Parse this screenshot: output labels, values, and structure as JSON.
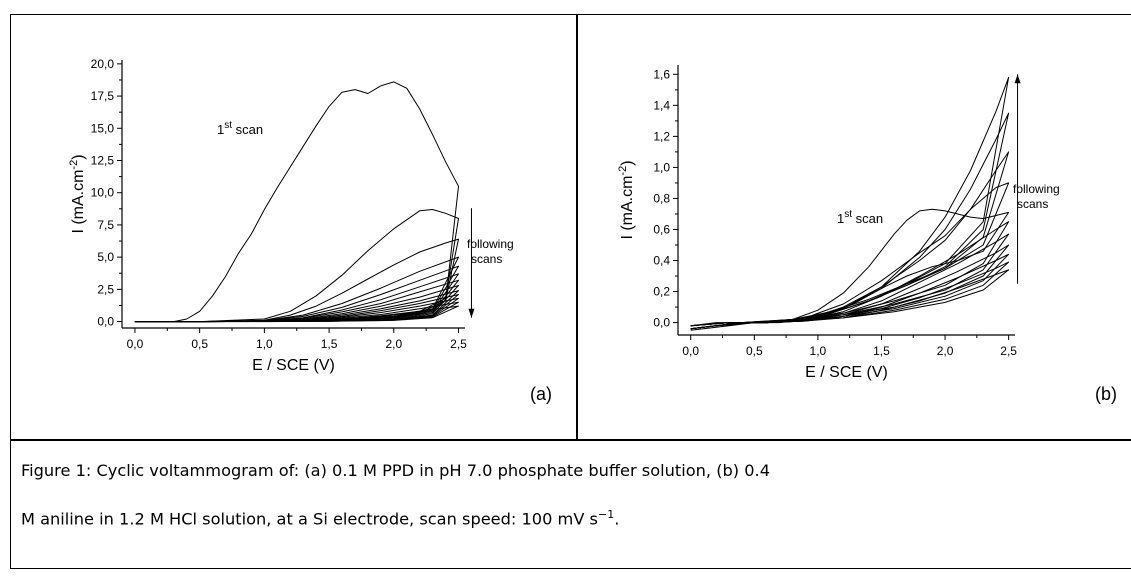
{
  "chart_data": [
    {
      "type": "line",
      "panel_label": "(a)",
      "xlabel": "E / SCE (V)",
      "ylabel": "I (mA.cm-2)",
      "xlim": [
        -0.1,
        2.55
      ],
      "ylim": [
        -0.5,
        20.3
      ],
      "x_ticks": [
        "0,0",
        "0,5",
        "1,0",
        "1,5",
        "2,0",
        "2,5"
      ],
      "y_ticks": [
        "0,0",
        "2,5",
        "5,0",
        "7,5",
        "10,0",
        "12,5",
        "15,0",
        "17,5",
        "20,0"
      ],
      "annotations": {
        "first_scan": {
          "base": "1",
          "sup": "st",
          "rest": " scan"
        },
        "following": [
          "following",
          "scans"
        ]
      },
      "arrow": {
        "x": 2.6,
        "from": 8.8,
        "to": 0.3,
        "direction": "down"
      },
      "series": [
        {
          "x": [
            0.0,
            0.1,
            0.2,
            0.3,
            0.4,
            0.5,
            0.6,
            0.7,
            0.8,
            0.9,
            1.0,
            1.1,
            1.2,
            1.3,
            1.4,
            1.5,
            1.6,
            1.7,
            1.8,
            1.9,
            2.0,
            2.1,
            2.2,
            2.3,
            2.4,
            2.5,
            2.4,
            2.3,
            2.2,
            2.0,
            1.8,
            1.5,
            1.0,
            0.5,
            0.0
          ],
          "y": [
            0.0,
            0.0,
            0.0,
            0.0,
            0.2,
            0.8,
            2.0,
            3.5,
            5.3,
            6.8,
            8.7,
            10.4,
            12.0,
            13.6,
            15.2,
            16.7,
            17.8,
            18.0,
            17.7,
            18.3,
            18.6,
            18.1,
            16.5,
            14.5,
            12.4,
            10.5,
            1.6,
            0.9,
            0.6,
            0.35,
            0.2,
            0.1,
            0.05,
            0.0,
            0.0
          ]
        },
        {
          "x": [
            0.0,
            0.5,
            1.0,
            1.2,
            1.4,
            1.6,
            1.8,
            2.0,
            2.2,
            2.3,
            2.4,
            2.5,
            2.4,
            2.2,
            2.0,
            1.8,
            1.5,
            1.0,
            0.5,
            0.0
          ],
          "y": [
            0.0,
            0.0,
            0.2,
            0.8,
            2.0,
            3.6,
            5.5,
            7.2,
            8.6,
            8.7,
            8.4,
            8.0,
            1.8,
            0.8,
            0.5,
            0.3,
            0.15,
            0.05,
            0.0,
            0.0
          ]
        },
        {
          "x": [
            0.0,
            0.5,
            1.0,
            1.2,
            1.4,
            1.6,
            1.8,
            2.0,
            2.2,
            2.4,
            2.5,
            2.4,
            2.2,
            2.0,
            1.5,
            1.0,
            0.5,
            0.0
          ],
          "y": [
            0.0,
            0.0,
            0.1,
            0.5,
            1.2,
            2.2,
            3.3,
            4.4,
            5.4,
            6.1,
            6.4,
            1.6,
            0.7,
            0.4,
            0.15,
            0.05,
            0.0,
            0.0
          ]
        },
        {
          "x": [
            0.0,
            0.5,
            1.0,
            1.3,
            1.6,
            1.9,
            2.2,
            2.5,
            2.3,
            2.0,
            1.5,
            1.0,
            0.5,
            0.0
          ],
          "y": [
            0.0,
            0.0,
            0.08,
            0.5,
            1.4,
            2.6,
            3.9,
            5.0,
            1.0,
            0.4,
            0.12,
            0.04,
            0.0,
            0.0
          ]
        },
        {
          "x": [
            0.0,
            0.5,
            1.0,
            1.3,
            1.6,
            1.9,
            2.2,
            2.5,
            2.3,
            2.0,
            1.5,
            1.0,
            0.5,
            0.0
          ],
          "y": [
            0.0,
            0.0,
            0.06,
            0.4,
            1.1,
            2.1,
            3.2,
            4.3,
            0.9,
            0.35,
            0.1,
            0.03,
            0.0,
            0.0
          ]
        },
        {
          "x": [
            0.0,
            0.5,
            1.0,
            1.3,
            1.6,
            1.9,
            2.2,
            2.5,
            2.3,
            2.0,
            1.5,
            1.0,
            0.5,
            0.0
          ],
          "y": [
            0.0,
            0.0,
            0.05,
            0.3,
            0.9,
            1.7,
            2.7,
            3.7,
            0.8,
            0.3,
            0.08,
            0.02,
            0.0,
            0.0
          ]
        },
        {
          "x": [
            0.0,
            0.5,
            1.0,
            1.3,
            1.6,
            1.9,
            2.2,
            2.5,
            2.3,
            2.0,
            1.5,
            1.0,
            0.5,
            0.0
          ],
          "y": [
            0.0,
            0.0,
            0.04,
            0.25,
            0.75,
            1.4,
            2.3,
            3.2,
            0.7,
            0.25,
            0.07,
            0.02,
            0.0,
            0.0
          ]
        },
        {
          "x": [
            0.0,
            0.5,
            1.0,
            1.3,
            1.6,
            1.9,
            2.2,
            2.5,
            2.3,
            2.0,
            1.5,
            1.0,
            0.5,
            0.0
          ],
          "y": [
            0.0,
            0.0,
            0.03,
            0.2,
            0.6,
            1.2,
            1.9,
            2.8,
            0.6,
            0.2,
            0.06,
            0.02,
            0.0,
            0.0
          ]
        },
        {
          "x": [
            0.0,
            0.5,
            1.0,
            1.3,
            1.6,
            1.9,
            2.2,
            2.5,
            2.3,
            2.0,
            1.5,
            1.0,
            0.5,
            0.0
          ],
          "y": [
            0.0,
            0.0,
            0.03,
            0.16,
            0.5,
            1.0,
            1.6,
            2.4,
            0.5,
            0.18,
            0.05,
            0.01,
            0.0,
            0.0
          ]
        },
        {
          "x": [
            0.0,
            0.5,
            1.0,
            1.3,
            1.6,
            1.9,
            2.2,
            2.5,
            2.3,
            2.0,
            1.5,
            1.0,
            0.5,
            0.0
          ],
          "y": [
            0.0,
            0.0,
            0.02,
            0.13,
            0.4,
            0.85,
            1.4,
            2.1,
            0.45,
            0.15,
            0.04,
            0.01,
            0.0,
            0.0
          ]
        },
        {
          "x": [
            0.0,
            0.5,
            1.0,
            1.3,
            1.6,
            1.9,
            2.2,
            2.5,
            2.3,
            2.0,
            1.5,
            1.0,
            0.5,
            0.0
          ],
          "y": [
            0.0,
            0.0,
            0.02,
            0.1,
            0.33,
            0.7,
            1.2,
            1.8,
            0.4,
            0.13,
            0.03,
            0.01,
            0.0,
            0.0
          ]
        },
        {
          "x": [
            0.0,
            0.5,
            1.0,
            1.3,
            1.6,
            1.9,
            2.2,
            2.5,
            2.3,
            2.0,
            1.5,
            1.0,
            0.5,
            0.0
          ],
          "y": [
            0.0,
            0.0,
            0.01,
            0.08,
            0.27,
            0.55,
            1.0,
            1.5,
            0.35,
            0.11,
            0.03,
            0.01,
            0.0,
            0.0
          ]
        },
        {
          "x": [
            0.0,
            0.5,
            1.0,
            1.3,
            1.6,
            1.9,
            2.2,
            2.5,
            2.3,
            2.0,
            1.5,
            1.0,
            0.5,
            0.0
          ],
          "y": [
            0.0,
            0.0,
            0.01,
            0.06,
            0.2,
            0.45,
            0.8,
            1.2,
            0.3,
            0.09,
            0.02,
            0.0,
            0.0,
            0.0
          ]
        }
      ]
    },
    {
      "type": "line",
      "panel_label": "(b)",
      "xlabel": "E / SCE (V)",
      "ylabel": "I (mA.cm-2)",
      "xlim": [
        -0.1,
        2.55
      ],
      "ylim": [
        -0.08,
        1.66
      ],
      "x_ticks": [
        "0,0",
        "0,5",
        "1,0",
        "1,5",
        "2,0",
        "2,5"
      ],
      "y_ticks": [
        "0,0",
        "0,2",
        "0,4",
        "0,6",
        "0,8",
        "1,0",
        "1,2",
        "1,4",
        "1,6"
      ],
      "annotations": {
        "first_scan": {
          "base": "1",
          "sup": "st",
          "rest": " scan"
        },
        "following": [
          "following",
          "scans"
        ]
      },
      "arrow": {
        "x": 2.57,
        "from": 0.25,
        "to": 1.6,
        "direction": "up"
      },
      "series": [
        {
          "x": [
            0.0,
            0.2,
            0.4,
            0.6,
            0.8,
            1.0,
            1.2,
            1.4,
            1.6,
            1.7,
            1.8,
            1.9,
            2.0,
            2.1,
            2.2,
            2.3,
            2.4,
            2.5,
            2.3,
            2.1,
            1.9,
            1.7,
            1.5,
            1.3,
            1.1,
            0.9,
            0.7,
            0.5,
            0.3,
            0.1,
            0.0
          ],
          "y": [
            -0.02,
            0.0,
            0.0,
            0.0,
            0.02,
            0.08,
            0.19,
            0.36,
            0.57,
            0.66,
            0.72,
            0.73,
            0.72,
            0.7,
            0.68,
            0.67,
            0.69,
            0.71,
            0.46,
            0.4,
            0.36,
            0.3,
            0.22,
            0.13,
            0.06,
            0.02,
            0.0,
            0.0,
            -0.02,
            -0.04,
            -0.05
          ]
        },
        {
          "x": [
            0.0,
            0.3,
            0.6,
            0.9,
            1.2,
            1.5,
            1.8,
            2.0,
            2.2,
            2.4,
            2.5,
            2.3,
            2.0,
            1.7,
            1.4,
            1.1,
            0.8,
            0.5,
            0.2,
            0.0
          ],
          "y": [
            -0.02,
            0.0,
            0.0,
            0.03,
            0.12,
            0.27,
            0.45,
            0.56,
            0.73,
            0.87,
            0.9,
            0.5,
            0.35,
            0.25,
            0.15,
            0.07,
            0.02,
            0.0,
            -0.02,
            -0.04
          ]
        },
        {
          "x": [
            0.0,
            0.3,
            0.6,
            0.9,
            1.2,
            1.5,
            1.8,
            2.0,
            2.2,
            2.4,
            2.5,
            2.3,
            2.0,
            1.7,
            1.4,
            1.1,
            0.8,
            0.5,
            0.2,
            0.0
          ],
          "y": [
            -0.02,
            0.0,
            0.0,
            0.02,
            0.1,
            0.23,
            0.4,
            0.53,
            0.73,
            0.98,
            1.1,
            0.55,
            0.35,
            0.24,
            0.14,
            0.06,
            0.02,
            0.0,
            -0.02,
            -0.04
          ]
        },
        {
          "x": [
            0.0,
            0.3,
            0.6,
            0.9,
            1.2,
            1.5,
            1.8,
            2.0,
            2.2,
            2.4,
            2.5,
            2.3,
            2.0,
            1.7,
            1.4,
            1.1,
            0.8,
            0.5,
            0.2,
            0.0
          ],
          "y": [
            -0.02,
            0.0,
            0.0,
            0.02,
            0.09,
            0.22,
            0.42,
            0.6,
            0.86,
            1.18,
            1.35,
            0.6,
            0.36,
            0.24,
            0.14,
            0.06,
            0.02,
            0.0,
            -0.02,
            -0.04
          ]
        },
        {
          "x": [
            0.0,
            0.3,
            0.6,
            0.9,
            1.2,
            1.5,
            1.8,
            2.0,
            2.2,
            2.4,
            2.5,
            2.3,
            2.0,
            1.7,
            1.4,
            1.1,
            0.8,
            0.5,
            0.2,
            0.0
          ],
          "y": [
            -0.02,
            0.0,
            0.0,
            0.02,
            0.09,
            0.23,
            0.46,
            0.68,
            0.98,
            1.36,
            1.58,
            0.65,
            0.38,
            0.25,
            0.14,
            0.06,
            0.02,
            0.0,
            -0.02,
            -0.04
          ]
        },
        {
          "x": [
            0.0,
            0.3,
            0.6,
            0.9,
            1.2,
            1.5,
            1.8,
            2.1,
            2.4,
            2.5,
            2.3,
            2.0,
            1.6,
            1.2,
            0.8,
            0.4,
            0.0
          ],
          "y": [
            -0.02,
            0.0,
            0.0,
            0.02,
            0.07,
            0.17,
            0.3,
            0.44,
            0.6,
            0.65,
            0.38,
            0.24,
            0.14,
            0.06,
            0.02,
            0.0,
            -0.04
          ]
        },
        {
          "x": [
            0.0,
            0.3,
            0.6,
            0.9,
            1.2,
            1.5,
            1.8,
            2.1,
            2.4,
            2.5,
            2.3,
            2.0,
            1.6,
            1.2,
            0.8,
            0.4,
            0.0
          ],
          "y": [
            -0.02,
            0.0,
            0.0,
            0.02,
            0.06,
            0.14,
            0.26,
            0.38,
            0.52,
            0.57,
            0.34,
            0.21,
            0.12,
            0.05,
            0.02,
            0.0,
            -0.04
          ]
        },
        {
          "x": [
            0.0,
            0.3,
            0.6,
            0.9,
            1.2,
            1.5,
            1.8,
            2.1,
            2.4,
            2.5,
            2.3,
            2.0,
            1.6,
            1.2,
            0.8,
            0.4,
            0.0
          ],
          "y": [
            -0.02,
            0.0,
            0.0,
            0.01,
            0.05,
            0.12,
            0.22,
            0.33,
            0.45,
            0.5,
            0.3,
            0.19,
            0.1,
            0.05,
            0.01,
            0.0,
            -0.04
          ]
        },
        {
          "x": [
            0.0,
            0.3,
            0.6,
            0.9,
            1.2,
            1.5,
            1.8,
            2.1,
            2.4,
            2.5,
            2.3,
            2.0,
            1.6,
            1.2,
            0.8,
            0.4,
            0.0
          ],
          "y": [
            -0.02,
            0.0,
            0.0,
            0.01,
            0.04,
            0.1,
            0.19,
            0.29,
            0.4,
            0.44,
            0.27,
            0.17,
            0.09,
            0.04,
            0.01,
            0.0,
            -0.04
          ]
        },
        {
          "x": [
            0.0,
            0.3,
            0.6,
            0.9,
            1.2,
            1.5,
            1.8,
            2.1,
            2.4,
            2.5,
            2.3,
            2.0,
            1.6,
            1.2,
            0.8,
            0.4,
            0.0
          ],
          "y": [
            -0.02,
            0.0,
            0.0,
            0.01,
            0.04,
            0.09,
            0.16,
            0.25,
            0.35,
            0.39,
            0.24,
            0.15,
            0.08,
            0.03,
            0.01,
            0.0,
            -0.04
          ]
        },
        {
          "x": [
            0.0,
            0.3,
            0.6,
            0.9,
            1.2,
            1.5,
            1.8,
            2.1,
            2.4,
            2.5,
            2.3,
            2.0,
            1.6,
            1.2,
            0.8,
            0.4,
            0.0
          ],
          "y": [
            -0.02,
            0.0,
            0.0,
            0.01,
            0.03,
            0.08,
            0.14,
            0.22,
            0.31,
            0.34,
            0.21,
            0.13,
            0.07,
            0.03,
            0.01,
            0.0,
            -0.04
          ]
        }
      ]
    }
  ],
  "caption": {
    "line1": "Figure 1: Cyclic voltammogram of: (a) 0.1 M PPD in pH 7.0 phosphate buffer solution, (b) 0.4",
    "line2_main": "M aniline in 1.2 M HCl solution, at a Si electrode, scan speed: 100 mV s",
    "line2_sup": "−1",
    "line2_end": "."
  }
}
